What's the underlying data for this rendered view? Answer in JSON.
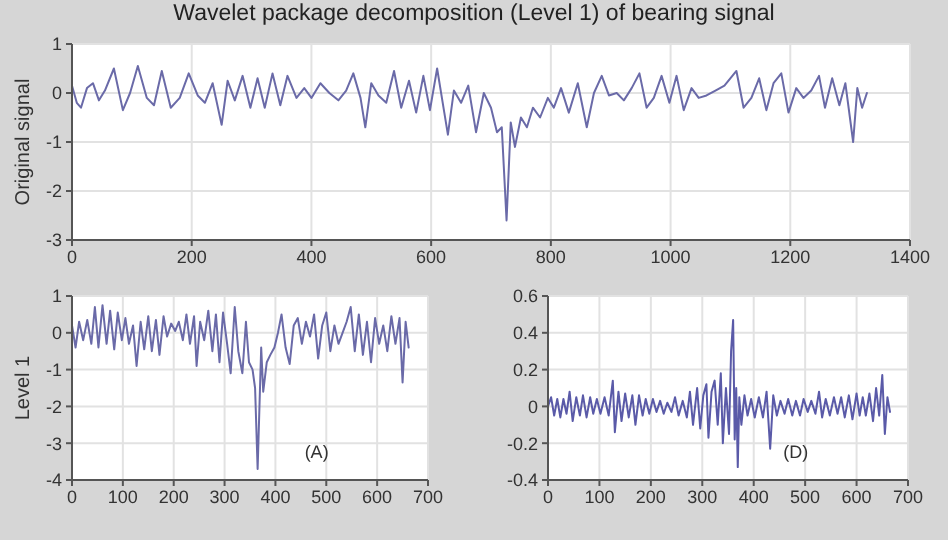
{
  "chart_data": [
    {
      "type": "line",
      "title": "Wavelet package decomposition (Level 1) of bearing signal",
      "ylabel": "Original signal",
      "xlim": [
        0,
        1400
      ],
      "xticks": [
        0,
        200,
        400,
        600,
        800,
        1000,
        1200,
        1400
      ],
      "ylim": [
        -3,
        1
      ],
      "yticks": [
        -3,
        -2,
        -1,
        0,
        1
      ],
      "grid": true,
      "marker": "none",
      "line_style": "solid",
      "series": [
        {
          "color": "#6a6aa8",
          "x": [
            0,
            8,
            15,
            25,
            35,
            45,
            55,
            70,
            85,
            97,
            110,
            125,
            137,
            150,
            165,
            180,
            195,
            210,
            222,
            235,
            250,
            260,
            272,
            285,
            298,
            310,
            322,
            335,
            348,
            360,
            375,
            388,
            400,
            415,
            430,
            445,
            458,
            470,
            482,
            490,
            500,
            512,
            525,
            538,
            550,
            563,
            575,
            587,
            598,
            610,
            622,
            628,
            638,
            650,
            662,
            675,
            688,
            700,
            710,
            718,
            726,
            733,
            740,
            750,
            760,
            770,
            782,
            795,
            805,
            817,
            830,
            845,
            860,
            872,
            885,
            897,
            910,
            922,
            935,
            948,
            960,
            972,
            985,
            998,
            1010,
            1022,
            1035,
            1047,
            1060,
            1075,
            1090,
            1110,
            1122,
            1135,
            1148,
            1160,
            1172,
            1185,
            1197,
            1210,
            1222,
            1235,
            1248,
            1258,
            1270,
            1282,
            1292,
            1305,
            1312,
            1320,
            1328
          ],
          "values": [
            0.15,
            -0.2,
            -0.3,
            0.1,
            0.2,
            -0.15,
            0.05,
            0.5,
            -0.35,
            0.0,
            0.55,
            -0.1,
            -0.25,
            0.45,
            -0.3,
            -0.1,
            0.4,
            -0.05,
            -0.2,
            0.2,
            -0.65,
            0.25,
            -0.15,
            0.35,
            -0.3,
            0.3,
            -0.3,
            0.4,
            -0.25,
            0.35,
            -0.1,
            0.1,
            -0.1,
            0.2,
            0.0,
            -0.15,
            0.05,
            0.4,
            -0.1,
            -0.7,
            0.2,
            -0.05,
            -0.2,
            0.45,
            -0.3,
            0.25,
            -0.4,
            0.35,
            -0.35,
            0.5,
            -0.4,
            -0.85,
            0.05,
            -0.2,
            0.15,
            -0.8,
            0.0,
            -0.3,
            -0.8,
            -0.7,
            -2.6,
            -0.6,
            -1.1,
            -0.5,
            -0.7,
            -0.3,
            -0.5,
            -0.1,
            -0.3,
            0.1,
            -0.4,
            0.2,
            -0.7,
            0.0,
            0.35,
            -0.05,
            0.0,
            -0.15,
            0.1,
            0.4,
            -0.3,
            -0.1,
            0.35,
            -0.2,
            0.35,
            -0.35,
            0.1,
            -0.1,
            -0.05,
            0.05,
            0.15,
            0.45,
            -0.3,
            -0.1,
            0.3,
            -0.35,
            0.2,
            0.4,
            -0.4,
            0.1,
            -0.1,
            0.05,
            0.35,
            -0.3,
            0.3,
            -0.25,
            0.2,
            -1.0,
            0.1,
            -0.3,
            0.0
          ]
        }
      ]
    },
    {
      "type": "line",
      "ylabel": "Level 1",
      "annotations": [
        "(A)"
      ],
      "xlim": [
        0,
        700
      ],
      "xticks": [
        0,
        100,
        200,
        300,
        400,
        500,
        600,
        700
      ],
      "ylim": [
        -4,
        1
      ],
      "yticks": [
        -4,
        -3,
        -2,
        -1,
        0,
        1
      ],
      "grid": true,
      "marker": "none",
      "line_style": "solid",
      "series": [
        {
          "color": "#6a6aa8",
          "x": [
            0,
            7,
            14,
            22,
            30,
            38,
            45,
            52,
            60,
            68,
            75,
            83,
            90,
            98,
            105,
            112,
            120,
            127,
            135,
            142,
            150,
            157,
            165,
            172,
            180,
            187,
            195,
            203,
            210,
            218,
            225,
            232,
            240,
            245,
            252,
            260,
            268,
            276,
            283,
            290,
            297,
            305,
            312,
            320,
            327,
            335,
            342,
            348,
            355,
            360,
            365,
            372,
            376,
            383,
            390,
            398,
            405,
            412,
            420,
            428,
            436,
            444,
            452,
            460,
            468,
            476,
            484,
            492,
            500,
            508,
            516,
            524,
            532,
            540,
            548,
            556,
            564,
            572,
            580,
            588,
            596,
            604,
            612,
            620,
            628,
            636,
            644,
            650,
            656,
            662
          ],
          "values": [
            0.2,
            -0.4,
            0.3,
            -0.2,
            0.35,
            -0.3,
            0.7,
            -0.4,
            0.75,
            -0.3,
            0.6,
            -0.45,
            0.55,
            -0.2,
            0.4,
            -0.3,
            0.2,
            -0.9,
            0.3,
            -0.45,
            0.45,
            -0.5,
            0.35,
            -0.6,
            0.45,
            -0.1,
            0.25,
            0.05,
            0.3,
            -0.2,
            0.5,
            -0.3,
            0.45,
            -0.9,
            0.3,
            -0.2,
            0.6,
            -0.5,
            0.5,
            -0.8,
            0.55,
            -0.3,
            -1.1,
            0.7,
            -0.5,
            -1.1,
            0.3,
            -0.8,
            -1.0,
            -1.5,
            -3.7,
            -0.4,
            -1.6,
            -0.8,
            -0.6,
            -0.4,
            0.0,
            0.5,
            -0.4,
            -0.85,
            0.2,
            0.4,
            -0.3,
            0.3,
            -0.1,
            0.5,
            -0.7,
            0.2,
            0.55,
            -0.5,
            0.2,
            -0.3,
            0.0,
            0.3,
            0.7,
            -0.5,
            0.5,
            -0.6,
            0.3,
            -0.8,
            0.4,
            -0.3,
            0.2,
            -0.5,
            0.45,
            -0.3,
            0.4,
            -1.35,
            0.3,
            -0.4
          ]
        }
      ]
    },
    {
      "type": "line",
      "annotations": [
        "(D)"
      ],
      "xlim": [
        0,
        700
      ],
      "xticks": [
        0,
        100,
        200,
        300,
        400,
        500,
        600,
        700
      ],
      "ylim": [
        -0.4,
        0.6
      ],
      "yticks": [
        -0.4,
        -0.2,
        0,
        0.2,
        0.4,
        0.6
      ],
      "grid": true,
      "marker": "none",
      "line_style": "solid",
      "series": [
        {
          "color": "#5a5aa8",
          "x": [
            0,
            6,
            12,
            18,
            24,
            30,
            36,
            42,
            48,
            55,
            62,
            68,
            75,
            82,
            88,
            95,
            102,
            110,
            118,
            126,
            130,
            137,
            143,
            150,
            157,
            164,
            170,
            177,
            184,
            190,
            197,
            204,
            211,
            218,
            225,
            232,
            240,
            247,
            254,
            262,
            270,
            276,
            282,
            290,
            296,
            302,
            308,
            312,
            318,
            324,
            330,
            336,
            340,
            346,
            352,
            356,
            360,
            363,
            366,
            369,
            372,
            376,
            382,
            388,
            395,
            402,
            410,
            418,
            425,
            432,
            438,
            445,
            452,
            460,
            467,
            475,
            482,
            490,
            497,
            505,
            512,
            520,
            527,
            533,
            540,
            548,
            556,
            563,
            570,
            577,
            585,
            592,
            600,
            606,
            612,
            618,
            625,
            632,
            638,
            644,
            650,
            655,
            660,
            665
          ],
          "values": [
            0.0,
            0.05,
            -0.05,
            0.04,
            -0.06,
            0.04,
            -0.04,
            0.08,
            -0.08,
            0.05,
            -0.05,
            0.06,
            -0.06,
            0.05,
            -0.04,
            0.04,
            -0.04,
            0.05,
            -0.05,
            0.14,
            -0.14,
            0.08,
            -0.08,
            0.07,
            -0.06,
            0.06,
            -0.1,
            0.06,
            -0.05,
            0.04,
            -0.04,
            0.04,
            -0.03,
            0.03,
            -0.04,
            0.02,
            -0.03,
            0.05,
            -0.05,
            0.03,
            -0.06,
            0.08,
            -0.1,
            0.1,
            -0.12,
            0.06,
            0.12,
            -0.17,
            0.08,
            0.14,
            -0.1,
            0.18,
            -0.2,
            0.1,
            -0.15,
            0.3,
            0.47,
            -0.18,
            0.1,
            -0.33,
            0.05,
            -0.1,
            0.06,
            -0.05,
            0.04,
            -0.06,
            0.05,
            -0.06,
            0.08,
            -0.23,
            0.06,
            -0.05,
            0.03,
            -0.04,
            0.04,
            -0.05,
            0.03,
            -0.05,
            0.04,
            -0.03,
            0.03,
            -0.04,
            0.08,
            -0.06,
            0.04,
            -0.05,
            0.05,
            -0.04,
            0.05,
            -0.06,
            0.06,
            -0.07,
            0.07,
            -0.05,
            0.05,
            -0.05,
            0.07,
            -0.08,
            0.1,
            -0.05,
            0.17,
            -0.15,
            0.05,
            -0.03
          ]
        }
      ]
    }
  ]
}
